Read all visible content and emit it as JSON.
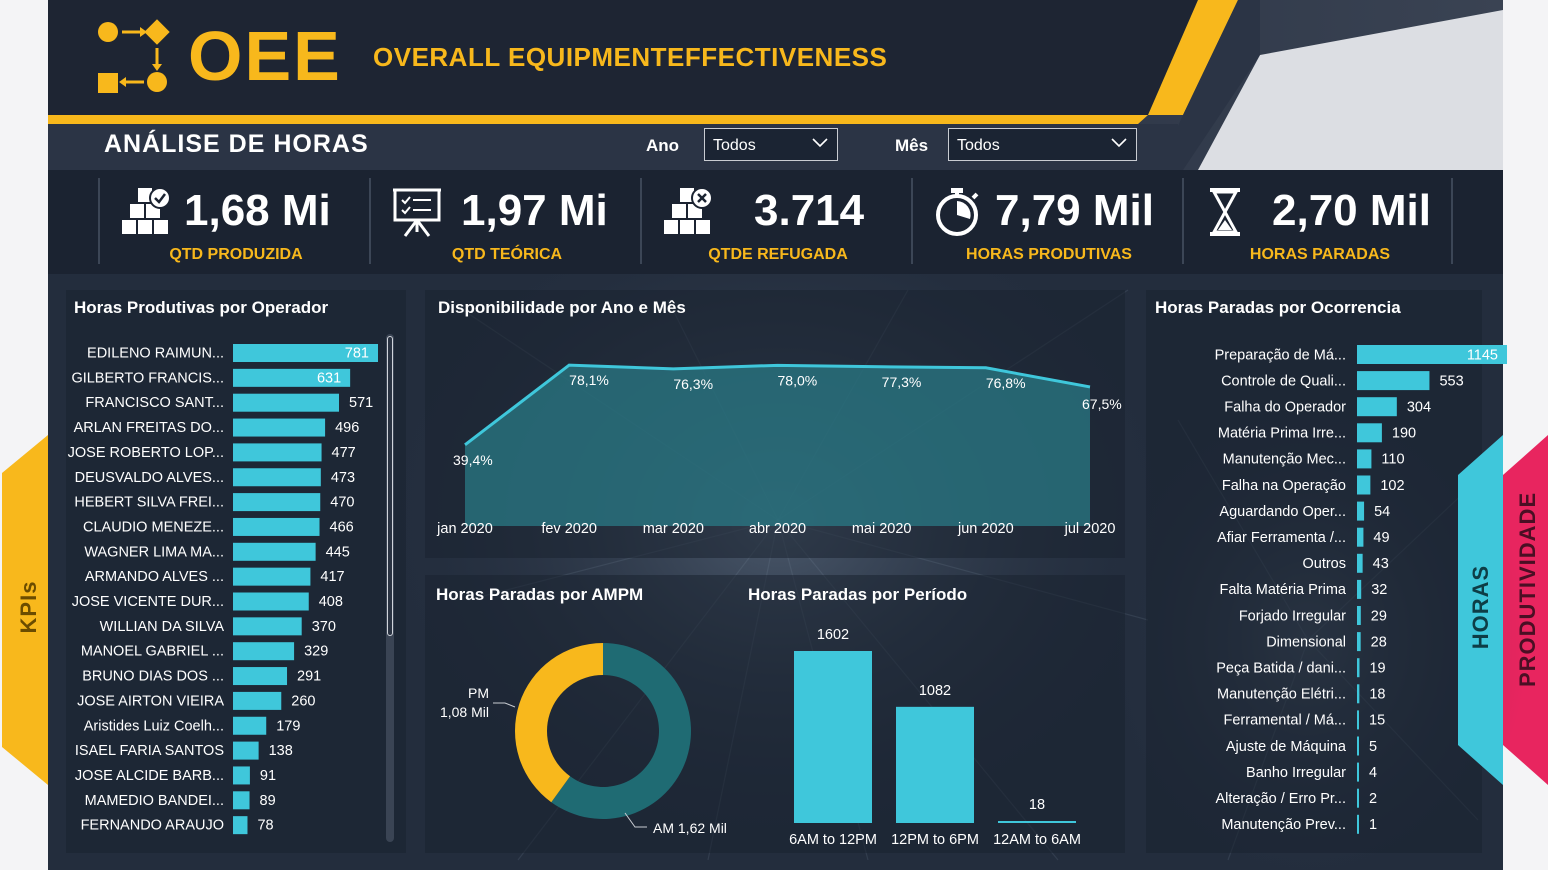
{
  "header": {
    "logo_title": "OEE",
    "subtitle": "OVERALL EQUIPMENTEFFECTIVENESS",
    "section_title": "ANÁLISE DE HORAS",
    "filters": [
      {
        "label": "Ano",
        "value": "Todos"
      },
      {
        "label": "Mês",
        "value": "Todos"
      }
    ]
  },
  "side_tabs": {
    "left": "KPIs",
    "right_1": "HORAS",
    "right_2": "PRODUTIVIDADE"
  },
  "colors": {
    "accent_yellow": "#f8b81c",
    "bar_cyan": "#3fc7db",
    "teal_area": "#2a7a86",
    "dark_teal": "#1f6b73",
    "pink": "#e8255f",
    "background": "#202a3a"
  },
  "kpis": [
    {
      "value": "1,68 Mi",
      "label": "QTD PRODUZIDA",
      "icon": "boxes-check-icon"
    },
    {
      "value": "1,97 Mi",
      "label": "QTD TEÓRICA",
      "icon": "presentation-board-icon"
    },
    {
      "value": "3.714",
      "label": "QTDE REFUGADA",
      "icon": "boxes-x-icon"
    },
    {
      "value": "7,79 Mil",
      "label": "HORAS PRODUTIVAS",
      "icon": "stopwatch-icon"
    },
    {
      "value": "2,70 Mil",
      "label": "HORAS PARADAS",
      "icon": "hourglass-icon"
    }
  ],
  "chart_data": [
    {
      "type": "bar",
      "orientation": "horizontal",
      "title": "Horas Produtivas por Operador",
      "categories": [
        "EDILENO RAIMUN...",
        "GILBERTO FRANCIS...",
        "FRANCISCO SANT...",
        "ARLAN FREITAS DO...",
        "JOSE ROBERTO LOP...",
        "DEUSVALDO ALVES...",
        "HEBERT SILVA FREI...",
        "CLAUDIO MENEZE...",
        "WAGNER LIMA MA...",
        "ARMANDO ALVES ...",
        "JOSE VICENTE DUR...",
        "WILLIAN DA SILVA",
        "MANOEL GABRIEL ...",
        "BRUNO DIAS DOS ...",
        "JOSE AIRTON VIEIRA",
        "Aristides Luiz Coelh...",
        "ISAEL FARIA SANTOS",
        "JOSE ALCIDE BARB...",
        "MAMEDIO BANDEI...",
        "FERNANDO ARAUJO"
      ],
      "values": [
        781,
        631,
        571,
        496,
        477,
        473,
        470,
        466,
        445,
        417,
        408,
        370,
        329,
        291,
        260,
        179,
        138,
        91,
        89,
        78
      ],
      "xlim": [
        0,
        781
      ]
    },
    {
      "type": "area",
      "title": "Disponibilidade por Ano e Mês",
      "categories": [
        "jan 2020",
        "fev 2020",
        "mar 2020",
        "abr 2020",
        "mai 2020",
        "jun 2020",
        "jul 2020"
      ],
      "values": [
        39.4,
        78.1,
        76.3,
        78.0,
        77.3,
        76.8,
        67.5
      ],
      "labels": [
        "39,4%",
        "78,1%",
        "76,3%",
        "78,0%",
        "77,3%",
        "76,8%",
        "67,5%"
      ],
      "ylim": [
        0,
        100
      ]
    },
    {
      "type": "pie",
      "donut": true,
      "title": "Horas Paradas por AMPM",
      "slices": [
        {
          "name": "PM",
          "value": 1080,
          "label": "1,08 Mil",
          "color": "#f8b81c"
        },
        {
          "name": "AM",
          "value": 1620,
          "label": "1,62 Mil",
          "color": "#1f6b73"
        }
      ]
    },
    {
      "type": "bar",
      "title": "Horas Paradas por Período",
      "categories": [
        "6AM to 12PM",
        "12PM to 6PM",
        "12AM to 6AM"
      ],
      "values": [
        1602,
        1082,
        18
      ],
      "ylim": [
        0,
        1602
      ]
    },
    {
      "type": "bar",
      "orientation": "horizontal",
      "title": "Horas Paradas por Ocorrencia",
      "categories": [
        "Preparação de Má...",
        "Controle de Quali...",
        "Falha do Operador",
        "Matéria Prima Irre...",
        "Manutenção Mec...",
        "Falha na Operação",
        "Aguardando Oper...",
        "Afiar Ferramenta /...",
        "Outros",
        "Falta Matéria Prima",
        "Forjado Irregular",
        "Dimensional",
        "Peça Batida / dani...",
        "Manutenção Elétri...",
        "Ferramental / Má...",
        "Ajuste de Máquina",
        "Banho Irregular",
        "Alteração / Erro Pr...",
        "Manutenção Prev..."
      ],
      "values": [
        1145,
        553,
        304,
        190,
        110,
        102,
        54,
        49,
        43,
        32,
        29,
        28,
        19,
        18,
        15,
        5,
        4,
        2,
        1
      ],
      "xlim": [
        0,
        1145
      ]
    }
  ]
}
